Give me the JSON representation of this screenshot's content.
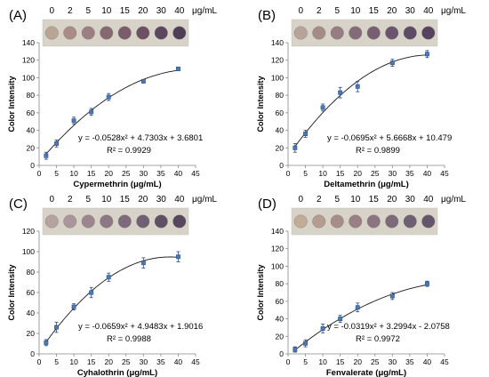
{
  "chart_data": [
    {
      "type": "scatter",
      "panel_label": "(A)",
      "strip_concentrations": [
        "0",
        "2",
        "5",
        "10",
        "15",
        "20",
        "30",
        "40"
      ],
      "strip_unit": "μg/mL",
      "xlabel": "Cypermethrin (μg/mL)",
      "ylabel": "Color Intensity",
      "xlim": [
        0,
        45
      ],
      "ylim": [
        0,
        140
      ],
      "xticks": [
        0,
        5,
        10,
        15,
        20,
        25,
        30,
        35,
        40,
        45
      ],
      "yticks": [
        0,
        20,
        40,
        60,
        80,
        100,
        120,
        140
      ],
      "x": [
        2,
        5,
        10,
        15,
        20,
        30,
        40
      ],
      "y": [
        11,
        25,
        51,
        61,
        78,
        96,
        110
      ],
      "error": [
        4,
        4,
        4,
        4,
        4,
        2,
        2
      ],
      "fit": {
        "a": -0.0528,
        "b": 4.7303,
        "c": 3.6801
      },
      "equation": "y = -0.0528x² + 4.7303x + 3.6801",
      "r2": "R² = 0.9929",
      "dot_colors": [
        "#b9a595",
        "#a88c85",
        "#9c7f82",
        "#866873",
        "#7a5c6c",
        "#6d5064",
        "#5c4660",
        "#4e3e58"
      ]
    },
    {
      "type": "scatter",
      "panel_label": "(B)",
      "strip_concentrations": [
        "0",
        "2",
        "5",
        "10",
        "15",
        "20",
        "30",
        "40"
      ],
      "strip_unit": "μg/mL",
      "xlabel": "Deltamethrin (μg/mL)",
      "ylabel": "Color Intensity",
      "xlim": [
        0,
        45
      ],
      "ylim": [
        0,
        140
      ],
      "xticks": [
        0,
        5,
        10,
        15,
        20,
        25,
        30,
        35,
        40,
        45
      ],
      "yticks": [
        0,
        20,
        40,
        60,
        80,
        100,
        120,
        140
      ],
      "x": [
        2,
        5,
        10,
        15,
        20,
        30,
        40
      ],
      "y": [
        20,
        36,
        66,
        83,
        90,
        117,
        127
      ],
      "error": [
        5,
        4,
        4,
        6,
        6,
        4,
        4
      ],
      "fit": {
        "a": -0.0695,
        "b": 5.6668,
        "c": 10.479
      },
      "equation": "y = -0.0695x² + 5.6668x + 10.479",
      "r2": "R² = 0.9899",
      "dot_colors": [
        "#b7a39a",
        "#a38c88",
        "#957d81",
        "#836c79",
        "#775f73",
        "#6b556e",
        "#5e4b66",
        "#54445f"
      ]
    },
    {
      "type": "scatter",
      "panel_label": "(C)",
      "strip_concentrations": [
        "0",
        "2",
        "5",
        "10",
        "15",
        "20",
        "30",
        "40"
      ],
      "strip_unit": "μg/mL",
      "xlabel": "Cyhalothrin (μg/mL)",
      "ylabel": "Color Intensity",
      "xlim": [
        0,
        45
      ],
      "ylim": [
        0,
        120
      ],
      "xticks": [
        0,
        5,
        10,
        15,
        20,
        25,
        30,
        35,
        40,
        45
      ],
      "yticks": [
        0,
        20,
        40,
        60,
        80,
        100,
        120
      ],
      "x": [
        2,
        5,
        10,
        15,
        20,
        30,
        40
      ],
      "y": [
        11,
        26,
        46,
        60,
        75,
        89,
        95
      ],
      "error": [
        3,
        5,
        3,
        5,
        4,
        5,
        5
      ],
      "fit": {
        "a": -0.0659,
        "b": 4.9483,
        "c": 1.9016
      },
      "equation": "y = -0.0659x² + 4.9483x + 1.9016",
      "r2": "R² = 0.9988",
      "dot_colors": [
        "#b4a3a0",
        "#a9959a",
        "#9b8690",
        "#8b7786",
        "#7d6a7d",
        "#706074",
        "#5f5068",
        "#56475f"
      ]
    },
    {
      "type": "scatter",
      "panel_label": "(D)",
      "strip_concentrations": [
        "0",
        "2",
        "5",
        "10",
        "15",
        "20",
        "30",
        "40"
      ],
      "strip_unit": "μg/mL",
      "xlabel": "Fenvalerate (μg/mL)",
      "ylabel": "Color Intensity",
      "xlim": [
        0,
        45
      ],
      "ylim": [
        0,
        140
      ],
      "xticks": [
        0,
        5,
        10,
        15,
        20,
        25,
        30,
        35,
        40,
        45
      ],
      "yticks": [
        0,
        20,
        40,
        60,
        80,
        100,
        120,
        140
      ],
      "x": [
        2,
        5,
        10,
        15,
        20,
        30,
        40
      ],
      "y": [
        5,
        12,
        29,
        40,
        53,
        66,
        80
      ],
      "error": [
        3,
        4,
        5,
        4,
        5,
        4,
        3
      ],
      "fit": {
        "a": -0.0319,
        "b": 3.2994,
        "c": -2.0758
      },
      "equation": "y = -0.0319x² + 3.2994x - 2.0758",
      "r2": "R² = 0.9972",
      "dot_colors": [
        "#c2ab97",
        "#b49c8f",
        "#a68d8a",
        "#988085",
        "#8a7580",
        "#7c6a7a",
        "#6e5f73",
        "#62566b"
      ]
    }
  ]
}
